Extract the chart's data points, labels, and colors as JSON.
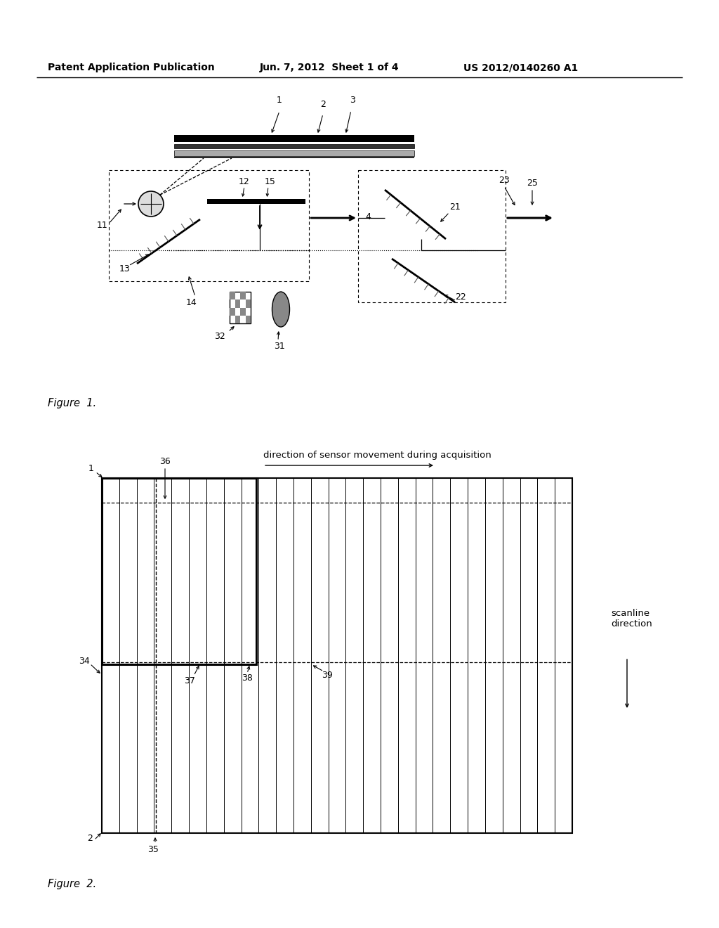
{
  "bg_color": "#ffffff",
  "header_text": "Patent Application Publication",
  "header_date": "Jun. 7, 2012  Sheet 1 of 4",
  "header_patent": "US 2012/0140260 A1",
  "fig1_caption": "Figure  1.",
  "fig2_caption": "Figure  2."
}
